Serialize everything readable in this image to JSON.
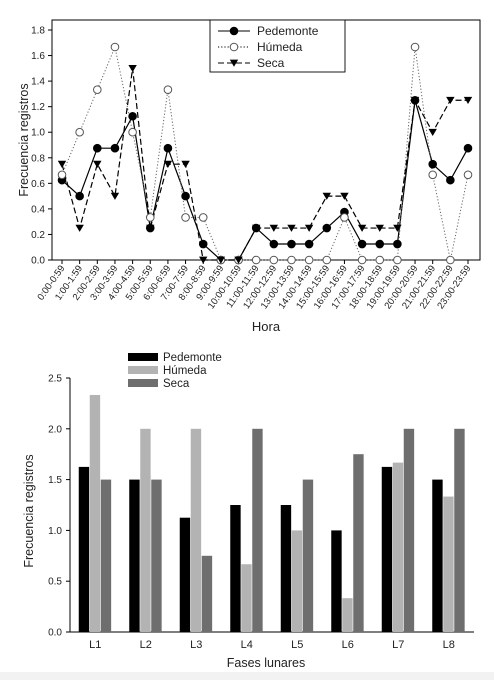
{
  "chart_data": [
    {
      "type": "line",
      "xlabel": "Hora",
      "ylabel": "Frecuencia registros",
      "ylim": [
        0.0,
        1.8
      ],
      "yticks": [
        "0.0",
        "0.2",
        "0.4",
        "0.6",
        "0.8",
        "1.0",
        "1.2",
        "1.4",
        "1.6",
        "1.8"
      ],
      "grid": false,
      "legend": "top-center",
      "categories": [
        "0:00-0:59",
        "1:00-1:59",
        "2:00-2:59",
        "3:00-3:59",
        "4:00-4:59",
        "5:00-5:59",
        "6:00-6:59",
        "7:00-7:59",
        "8:00-8:59",
        "9:00-9:59",
        "10:00-10:59",
        "11:00-11:59",
        "12:00-12:59",
        "13:00-13:59",
        "14:00-14:59",
        "15:00-15:59",
        "16:00-16:59",
        "17:00-17:59",
        "18:00-18:59",
        "19:00-19:59",
        "20:00-20:59",
        "21:00-21:59",
        "22:00-22:59",
        "23:00-23:59"
      ],
      "series": [
        {
          "name": "Pedemonte",
          "marker": "filled-circle",
          "line": "solid",
          "color": "#000000",
          "values": [
            0.625,
            0.5,
            0.875,
            0.875,
            1.125,
            0.25,
            0.875,
            0.5,
            0.125,
            0.0,
            0.0,
            0.25,
            0.125,
            0.125,
            0.125,
            0.25,
            0.375,
            0.125,
            0.125,
            0.125,
            1.25,
            0.75,
            0.625,
            0.875
          ]
        },
        {
          "name": "Húmeda",
          "marker": "open-circle",
          "line": "dotted",
          "color": "#000000",
          "values": [
            0.667,
            1.0,
            1.333,
            1.667,
            1.0,
            0.333,
            1.333,
            0.333,
            0.333,
            0.0,
            0.0,
            0.0,
            0.0,
            0.0,
            0.0,
            0.0,
            0.333,
            0.0,
            0.0,
            0.0,
            1.667,
            0.667,
            0.0,
            0.667
          ]
        },
        {
          "name": "Seca",
          "marker": "filled-triangle-down",
          "line": "dashed",
          "color": "#000000",
          "values": [
            0.75,
            0.25,
            0.75,
            0.5,
            1.5,
            0.25,
            0.75,
            0.75,
            0.0,
            0.0,
            0.0,
            0.25,
            0.25,
            0.25,
            0.25,
            0.5,
            0.5,
            0.25,
            0.25,
            0.25,
            1.25,
            1.0,
            1.25,
            1.25
          ]
        }
      ]
    },
    {
      "type": "bar",
      "xlabel": "Fases lunares",
      "ylabel": "Frecuencia registros",
      "ylim": [
        0.0,
        2.5
      ],
      "yticks": [
        "0.0",
        "0.5",
        "1.0",
        "1.5",
        "2.0",
        "2.5"
      ],
      "grid": false,
      "legend": "top-left",
      "categories": [
        "L1",
        "L2",
        "L3",
        "L4",
        "L5",
        "L6",
        "L7",
        "L8"
      ],
      "series": [
        {
          "name": "Pedemonte",
          "color": "#000000",
          "values": [
            1.625,
            1.5,
            1.125,
            1.25,
            1.25,
            1.0,
            1.625,
            1.5
          ]
        },
        {
          "name": "Húmeda",
          "color": "#b3b3b3",
          "values": [
            2.333,
            2.0,
            2.0,
            0.667,
            1.0,
            0.333,
            1.667,
            1.333
          ]
        },
        {
          "name": "Seca",
          "color": "#6e6e6e",
          "values": [
            1.5,
            1.5,
            0.75,
            2.0,
            1.5,
            1.75,
            2.0,
            2.0
          ]
        }
      ]
    }
  ]
}
